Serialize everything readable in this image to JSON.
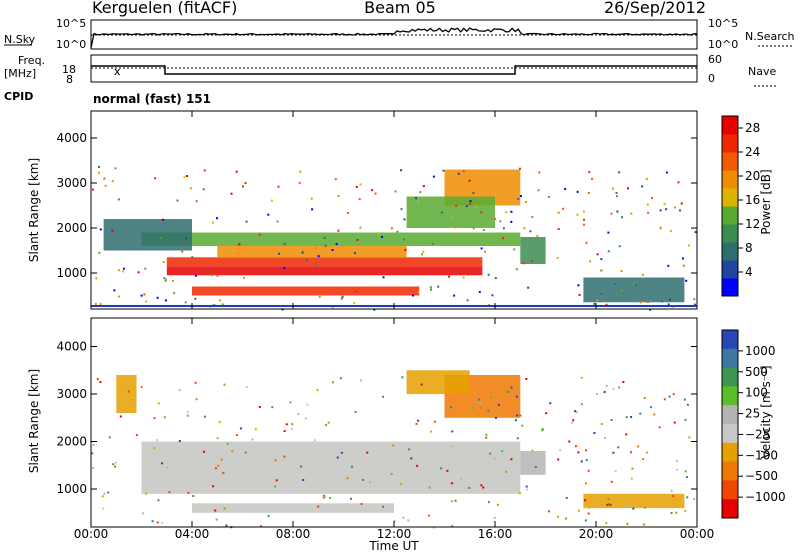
{
  "header": {
    "station": "Kerguelen (fitACF)",
    "beam": "Beam 05",
    "date": "26/Sep/2012"
  },
  "strips": {
    "nsky_label": "N.Sky",
    "nsky_ticks": [
      "10^5",
      "10^0"
    ],
    "nsearch_label": "N.Search",
    "nsearch_ticks": [
      "10^5",
      "10^0"
    ],
    "freq_label": "Freq.",
    "freq_unit": "[MHz]",
    "freq_ticks": [
      "18",
      "8"
    ],
    "nave_label": "Nave",
    "nave_ticks": [
      "60",
      "0"
    ],
    "cpid_label": "CPID",
    "cpid_value": "normal (fast) 151"
  },
  "colors": {
    "frame": "#000000",
    "power_scale": [
      "#0000ff",
      "#1e46a0",
      "#2f6e6e",
      "#3c8c50",
      "#5aaa32",
      "#dcb400",
      "#f08c00",
      "#f05a00",
      "#f02800",
      "#e60000"
    ],
    "velocity_scale": [
      "#2846b4",
      "#3c78a0",
      "#3c9650",
      "#5abe28",
      "#b4b4b4",
      "#c8c8c8",
      "#e6a000",
      "#f07800",
      "#f04600",
      "#e60000"
    ],
    "ground_scatter": "#c8c8c4"
  },
  "chart_data": [
    {
      "type": "heatmap",
      "title": "Power",
      "ylabel": "Slant Range [km]",
      "xlabel": "",
      "ylim": [
        200,
        4600
      ],
      "yticks": [
        "1000",
        "2000",
        "3000",
        "4000"
      ],
      "xticks": [
        "00:00",
        "04:00",
        "08:00",
        "12:00",
        "16:00",
        "20:00",
        "00:00"
      ],
      "colorbar": {
        "label": "Power [dB]",
        "ticks": [
          "4",
          "8",
          "12",
          "16",
          "20",
          "24",
          "28"
        ],
        "range": [
          0,
          30
        ]
      },
      "regions": [
        {
          "t": [
            3.0,
            15.5
          ],
          "r": [
            950,
            1150
          ],
          "value": 28
        },
        {
          "t": [
            3.0,
            15.5
          ],
          "r": [
            1150,
            1350
          ],
          "value": 24
        },
        {
          "t": [
            5.0,
            12.5
          ],
          "r": [
            1350,
            1600
          ],
          "value": 20
        },
        {
          "t": [
            4.0,
            13.0
          ],
          "r": [
            500,
            700
          ],
          "value": 26
        },
        {
          "t": [
            2.0,
            17.0
          ],
          "r": [
            1600,
            1900
          ],
          "value": 14
        },
        {
          "t": [
            0.5,
            4.0
          ],
          "r": [
            1500,
            2200
          ],
          "value": 8
        },
        {
          "t": [
            14.0,
            17.0
          ],
          "r": [
            2500,
            3300
          ],
          "value": 20
        },
        {
          "t": [
            12.5,
            16.0
          ],
          "r": [
            2000,
            2700
          ],
          "value": 14
        },
        {
          "t": [
            17.0,
            18.0
          ],
          "r": [
            1200,
            1800
          ],
          "value": 10
        },
        {
          "t": [
            19.5,
            23.5
          ],
          "r": [
            350,
            900
          ],
          "value": 6
        }
      ]
    },
    {
      "type": "heatmap",
      "title": "Velocity",
      "ylabel": "Slant Range [km]",
      "xlabel": "Time UT",
      "ylim": [
        200,
        4600
      ],
      "yticks": [
        "1000",
        "2000",
        "3000",
        "4000"
      ],
      "xticks": [
        "00:00",
        "04:00",
        "08:00",
        "12:00",
        "16:00",
        "20:00",
        "00:00"
      ],
      "colorbar": {
        "label": "Velocity [m s⁻¹]",
        "ticks": [
          "1000",
          "500",
          "100",
          "25",
          "−25",
          "−100",
          "−500",
          "−1000"
        ],
        "range": [
          -1000,
          1000
        ]
      },
      "regions": [
        {
          "t": [
            2.0,
            17.0
          ],
          "r": [
            900,
            2000
          ],
          "value": 0,
          "ground_scatter": true
        },
        {
          "t": [
            4.0,
            12.0
          ],
          "r": [
            500,
            700
          ],
          "value": 0,
          "ground_scatter": true
        },
        {
          "t": [
            14.0,
            17.0
          ],
          "r": [
            2500,
            3400
          ],
          "value": -400
        },
        {
          "t": [
            12.5,
            15.0
          ],
          "r": [
            3000,
            3500
          ],
          "value": -300
        },
        {
          "t": [
            1.0,
            1.8
          ],
          "r": [
            2600,
            3400
          ],
          "value": -200
        },
        {
          "t": [
            17.0,
            18.0
          ],
          "r": [
            1300,
            1800
          ],
          "value": 100
        },
        {
          "t": [
            19.5,
            23.5
          ],
          "r": [
            600,
            900
          ],
          "value": -300
        }
      ]
    }
  ]
}
